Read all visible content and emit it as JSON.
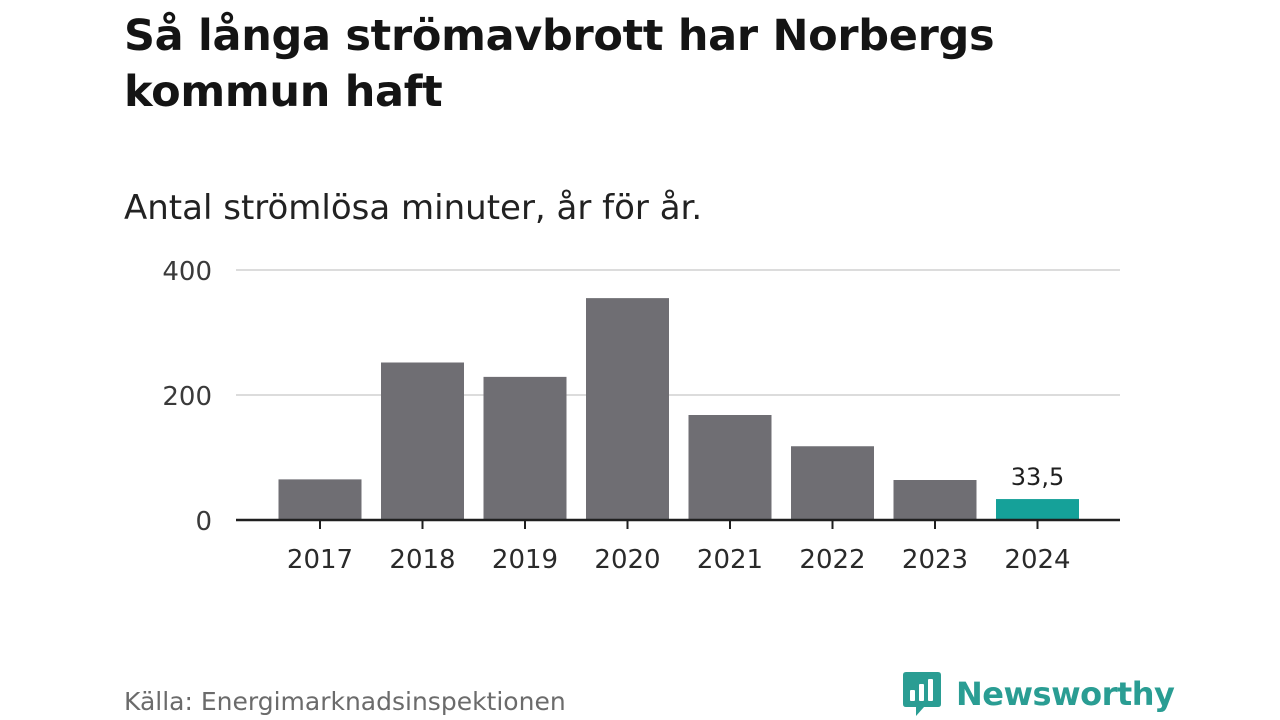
{
  "title": "Så långa strömavbrott har Norbergs kommun haft",
  "subtitle": "Antal strömlösa minuter, år för år.",
  "source": "Källa: Energimarknadsinspektionen",
  "brand": {
    "name": "Newsworthy",
    "icon": "newsworthy-logo-icon",
    "color": "#2a9d93"
  },
  "chart_data": {
    "type": "bar",
    "categories": [
      "2017",
      "2018",
      "2019",
      "2020",
      "2021",
      "2022",
      "2023",
      "2024"
    ],
    "values": [
      65,
      252,
      229,
      355,
      168,
      118,
      64,
      33.5
    ],
    "ylim": [
      0,
      400
    ],
    "yticks": [
      0,
      200,
      400
    ],
    "ytick_labels": [
      "0",
      "200",
      "400"
    ],
    "grid": true,
    "bar_color": "#6f6e73",
    "highlight_color": "#15a199",
    "highlight_index": 7,
    "annotations": [
      {
        "index": 7,
        "text": "33,5"
      }
    ]
  }
}
